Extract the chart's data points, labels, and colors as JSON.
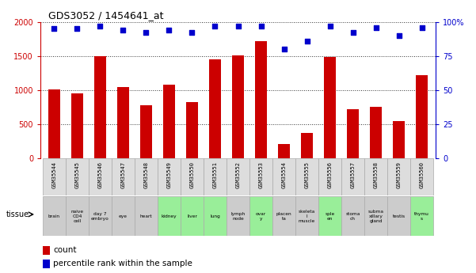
{
  "title": "GDS3052 / 1454641_at",
  "samples": [
    "GSM35544",
    "GSM35545",
    "GSM35546",
    "GSM35547",
    "GSM35548",
    "GSM35549",
    "GSM35550",
    "GSM35551",
    "GSM35552",
    "GSM35553",
    "GSM35554",
    "GSM35555",
    "GSM35556",
    "GSM35557",
    "GSM35558",
    "GSM35559",
    "GSM35560"
  ],
  "counts": [
    1010,
    950,
    1500,
    1040,
    780,
    1080,
    820,
    1450,
    1510,
    1720,
    215,
    370,
    1480,
    720,
    755,
    545,
    1220
  ],
  "percentiles": [
    95,
    95,
    97,
    94,
    92,
    94,
    92,
    97,
    97,
    97,
    80,
    86,
    97,
    92,
    96,
    90,
    96
  ],
  "tissues": [
    "brain",
    "naive\nCD4\ncell",
    "day 7\nembryо",
    "eye",
    "heart",
    "kidney",
    "liver",
    "lung",
    "lymph\nnode",
    "ovar\ny",
    "placen\nta",
    "skeleta\nl\nmuscle",
    "sple\nen",
    "stoma\nch",
    "subma\nxillary\ngland",
    "testis",
    "thymu\ns"
  ],
  "tissue_colors": [
    "#cccccc",
    "#cccccc",
    "#cccccc",
    "#cccccc",
    "#cccccc",
    "#99ee99",
    "#99ee99",
    "#99ee99",
    "#cccccc",
    "#99ee99",
    "#cccccc",
    "#cccccc",
    "#99ee99",
    "#cccccc",
    "#cccccc",
    "#cccccc",
    "#99ee99"
  ],
  "bar_color": "#cc0000",
  "dot_color": "#0000cc",
  "left_axis_color": "#cc0000",
  "right_axis_color": "#0000cc",
  "ylim_left": [
    0,
    2000
  ],
  "ylim_right": [
    0,
    100
  ],
  "yticks_left": [
    0,
    500,
    1000,
    1500,
    2000
  ],
  "yticks_right": [
    0,
    25,
    50,
    75,
    100
  ],
  "bg_color": "#ffffff",
  "plot_bg": "#ffffff"
}
